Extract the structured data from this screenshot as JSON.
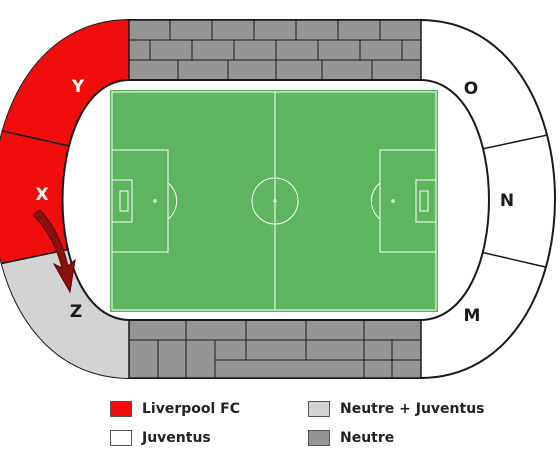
{
  "colors": {
    "liverpool": "#f20d0d",
    "juventus": "#ffffff",
    "neutral_juventus": "#d3d3d3",
    "neutral": "#959595",
    "pitch": "#5db55d",
    "outline": "#1a1a1a",
    "arrow": "#8b1010"
  },
  "sectors": {
    "y": "Y",
    "x": "X",
    "z": "Z",
    "o": "O",
    "n": "N",
    "m": "M"
  },
  "legend": {
    "liverpool": "Liverpool FC",
    "juventus": "Juventus",
    "neutral_juventus": "Neutre + Juventus",
    "neutral": "Neutre"
  }
}
